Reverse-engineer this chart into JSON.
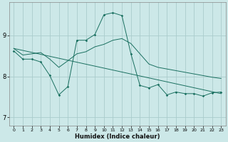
{
  "xlabel": "Humidex (Indice chaleur)",
  "bg_color": "#cce8e8",
  "line_color": "#1a7060",
  "grid_color": "#aacccc",
  "xlim": [
    -0.5,
    23.5
  ],
  "ylim": [
    6.8,
    9.8
  ],
  "yticks": [
    7,
    8,
    9
  ],
  "xticks": [
    0,
    1,
    2,
    3,
    4,
    5,
    6,
    7,
    8,
    9,
    10,
    11,
    12,
    13,
    14,
    15,
    16,
    17,
    18,
    19,
    20,
    21,
    22,
    23
  ],
  "jagged_x": [
    0,
    1,
    2,
    3,
    4,
    5,
    6,
    7,
    8,
    9,
    10,
    11,
    12,
    13,
    14,
    15,
    16,
    17,
    18,
    19,
    20,
    21,
    22,
    23
  ],
  "jagged_y": [
    8.62,
    8.42,
    8.42,
    8.35,
    8.02,
    7.55,
    7.75,
    8.88,
    8.88,
    9.02,
    9.5,
    9.55,
    9.48,
    8.55,
    7.78,
    7.72,
    7.8,
    7.55,
    7.62,
    7.58,
    7.58,
    7.52,
    7.6,
    7.62
  ],
  "smooth_x": [
    0,
    1,
    2,
    3,
    4,
    5,
    6,
    7,
    8,
    9,
    10,
    11,
    12,
    13,
    14,
    15,
    16,
    17,
    18,
    19,
    20,
    21,
    22,
    23
  ],
  "smooth_y": [
    8.68,
    8.52,
    8.55,
    8.58,
    8.42,
    8.22,
    8.38,
    8.55,
    8.6,
    8.72,
    8.78,
    8.88,
    8.92,
    8.8,
    8.55,
    8.3,
    8.22,
    8.18,
    8.14,
    8.1,
    8.06,
    8.02,
    7.98,
    7.95
  ],
  "trend_x": [
    0,
    23
  ],
  "trend_y": [
    8.68,
    7.58
  ]
}
